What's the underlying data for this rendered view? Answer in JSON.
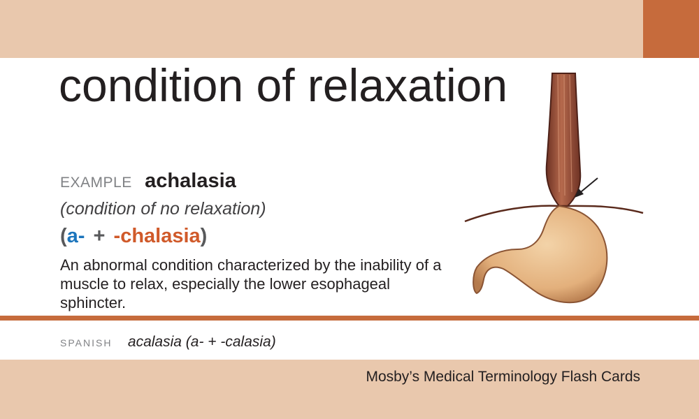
{
  "card": {
    "term": "condition of relaxation",
    "example_label": "EXAMPLE",
    "example_word": "achalasia",
    "meaning": "(condition of no relaxation)",
    "parts": {
      "open": "(",
      "prefix": "a-",
      "plus": "+",
      "suffix": "-chalasia",
      "close": ")"
    },
    "definition": "An abnormal condition characterized by the inability of a muscle to relax, especially the lower esophageal sphincter.",
    "spanish_label": "SPANISH",
    "spanish_text": "acalasia (a- + -calasia)",
    "publisher": "Mosby’s Medical Terminology Flash Cards"
  },
  "colors": {
    "band": "#e9c8ad",
    "accent": "#c66b3c",
    "prefix": "#1c75bc",
    "suffix": "#d05a2a"
  },
  "illustration": {
    "subject": "esophagus-stomach-icon"
  }
}
